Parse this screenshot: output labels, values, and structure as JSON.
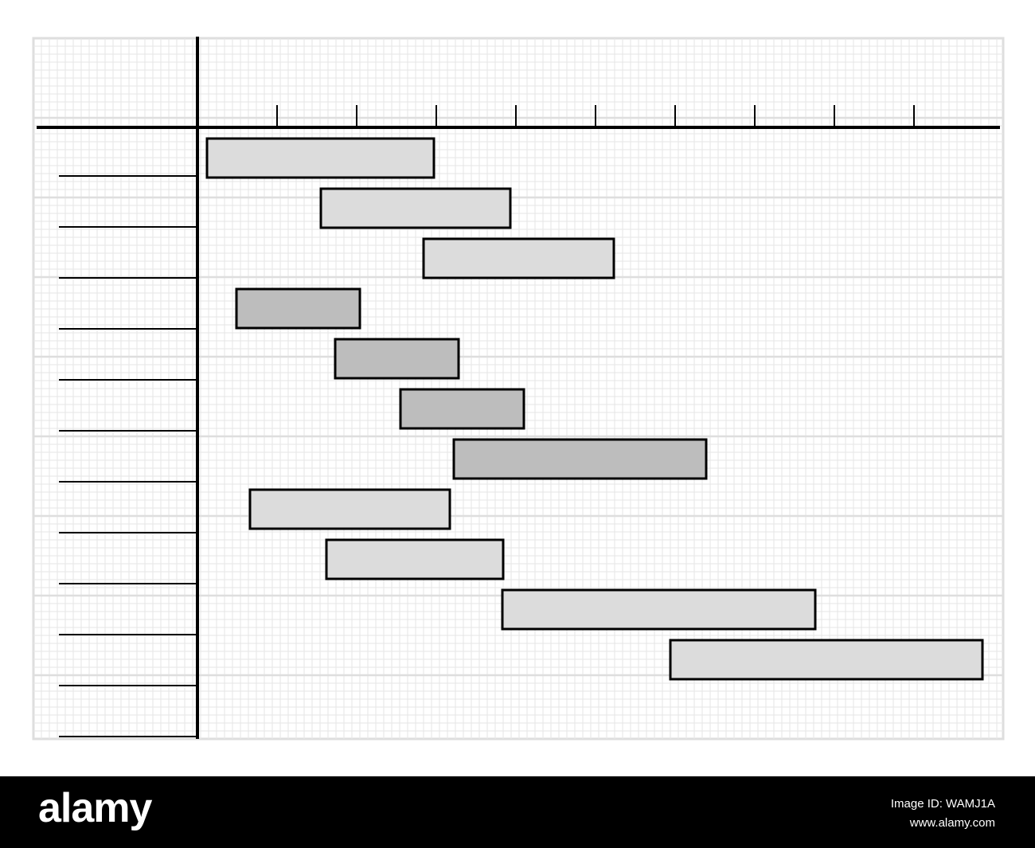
{
  "chart_data": {
    "type": "bar",
    "orientation": "horizontal-gantt",
    "title": "",
    "xlabel": "",
    "ylabel": "",
    "xlim": [
      0,
      10
    ],
    "x_ticks": [
      1,
      2,
      3,
      4,
      5,
      6,
      7,
      8,
      9
    ],
    "grid": true,
    "legend": "none",
    "tasks": [
      {
        "start": 0.12,
        "end": 2.97,
        "shade": "light"
      },
      {
        "start": 1.55,
        "end": 3.93,
        "shade": "light"
      },
      {
        "start": 2.84,
        "end": 5.23,
        "shade": "light"
      },
      {
        "start": 0.49,
        "end": 2.04,
        "shade": "dark"
      },
      {
        "start": 1.73,
        "end": 3.28,
        "shade": "dark"
      },
      {
        "start": 2.55,
        "end": 4.1,
        "shade": "dark"
      },
      {
        "start": 3.22,
        "end": 6.39,
        "shade": "dark"
      },
      {
        "start": 0.66,
        "end": 3.17,
        "shade": "light"
      },
      {
        "start": 1.62,
        "end": 3.84,
        "shade": "light"
      },
      {
        "start": 3.83,
        "end": 7.76,
        "shade": "light"
      },
      {
        "start": 5.94,
        "end": 9.86,
        "shade": "light"
      }
    ]
  },
  "colors": {
    "light_bar": "#dcdcdc",
    "dark_bar": "#bdbdbd",
    "bar_border": "#000000",
    "axis": "#000000",
    "grid_minor": "#e6e6e6",
    "grid_major": "#dedede",
    "background": "#ffffff",
    "footer": "#000000",
    "footer_text": "#ffffff"
  },
  "footer": {
    "brand": "alamy",
    "image_id": "Image ID: WAMJ1A",
    "image_url": "www.alamy.com"
  }
}
